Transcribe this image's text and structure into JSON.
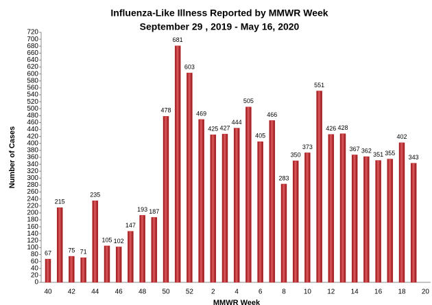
{
  "chart_data": {
    "type": "bar",
    "title": "Influenza-Like Illness Reported by MMWR Week",
    "subtitle": "September 29 , 2019 - May 16, 2020",
    "x_label": "MMWR Week",
    "y_label": "Number of Cases",
    "categories": [
      "40",
      null,
      "42",
      null,
      "44",
      null,
      "46",
      null,
      "48",
      null,
      "50",
      null,
      "52",
      null,
      "2",
      null,
      "4",
      null,
      "6",
      null,
      "8",
      null,
      "10",
      null,
      "12",
      null,
      "14",
      null,
      "16",
      null,
      "18",
      null,
      "20"
    ],
    "values": [
      67,
      215,
      75,
      71,
      235,
      105,
      102,
      147,
      193,
      187,
      478,
      681,
      603,
      469,
      425,
      427,
      444,
      505,
      405,
      466,
      283,
      350,
      373,
      551,
      426,
      428,
      367,
      362,
      351,
      355,
      402,
      343,
      null
    ],
    "color": "#c0262a",
    "ylim": [
      0,
      720
    ],
    "yticks": [
      0,
      20,
      40,
      60,
      80,
      100,
      120,
      140,
      160,
      180,
      200,
      220,
      240,
      260,
      280,
      300,
      320,
      340,
      360,
      380,
      400,
      420,
      440,
      460,
      480,
      500,
      520,
      540,
      560,
      580,
      600,
      620,
      640,
      660,
      680,
      700,
      720
    ],
    "grid": false
  }
}
